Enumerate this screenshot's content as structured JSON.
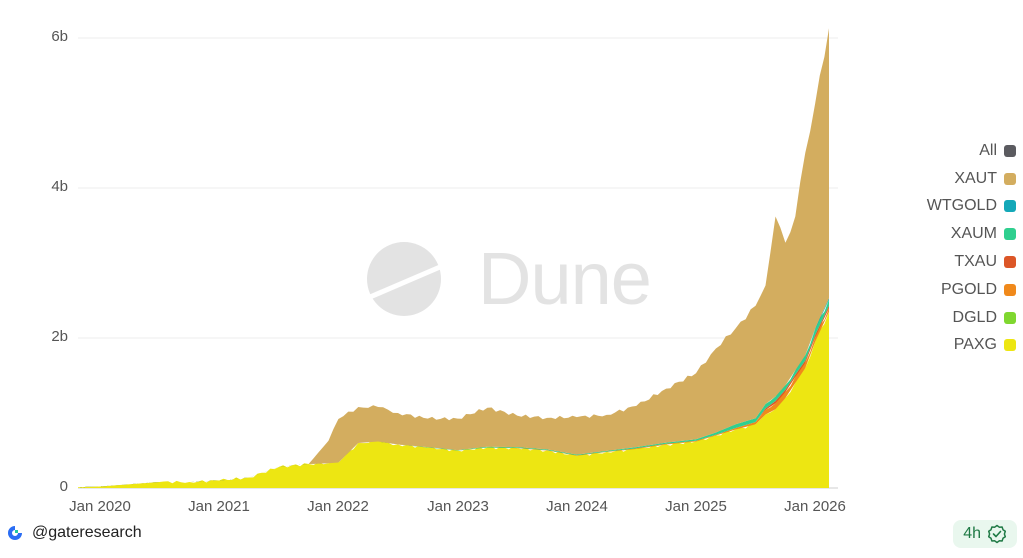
{
  "footer": {
    "handle": "@gateresearch",
    "refresh_badge": "4h"
  },
  "watermark": "Dune",
  "chart_data": {
    "type": "area",
    "stacked": true,
    "title": "",
    "xlabel": "",
    "ylabel": "",
    "ylim": [
      0,
      6000000000
    ],
    "grid": true,
    "legend_position": "right",
    "y_ticks": [
      {
        "label": "0",
        "value": 0
      },
      {
        "label": "2b",
        "value": 2000000000
      },
      {
        "label": "4b",
        "value": 4000000000
      },
      {
        "label": "6b",
        "value": 6000000000
      }
    ],
    "x_ticks": [
      "Jan 2020",
      "Jan 2021",
      "Jan 2022",
      "Jan 2023",
      "Jan 2024",
      "Jan 2025",
      "Jan 2026"
    ],
    "legend": [
      {
        "name": "All",
        "color": "#5b5b60"
      },
      {
        "name": "XAUT",
        "color": "#d3ad5f"
      },
      {
        "name": "WTGOLD",
        "color": "#14a8b8"
      },
      {
        "name": "XAUM",
        "color": "#2fcf8f"
      },
      {
        "name": "TXAU",
        "color": "#dc5627"
      },
      {
        "name": "PGOLD",
        "color": "#f0891b"
      },
      {
        "name": "DGLD",
        "color": "#7fd72f"
      },
      {
        "name": "PAXG",
        "color": "#ede612"
      }
    ],
    "x": [
      "2019-10",
      "2020-01",
      "2020-04",
      "2020-07",
      "2020-10",
      "2021-01",
      "2021-04",
      "2021-07",
      "2021-10",
      "2021-12",
      "2022-01",
      "2022-03",
      "2022-05",
      "2022-07",
      "2022-10",
      "2023-01",
      "2023-04",
      "2023-07",
      "2023-10",
      "2024-01",
      "2024-04",
      "2024-07",
      "2024-10",
      "2025-01",
      "2025-03",
      "2025-05",
      "2025-07",
      "2025-08",
      "2025-09",
      "2025-10",
      "2025-11",
      "2025-12",
      "2026-01",
      "2026-01-15"
    ],
    "series": [
      {
        "name": "PAXG",
        "values": [
          0.01,
          0.02,
          0.05,
          0.08,
          0.08,
          0.1,
          0.14,
          0.28,
          0.32,
          0.33,
          0.34,
          0.6,
          0.62,
          0.58,
          0.54,
          0.5,
          0.54,
          0.53,
          0.5,
          0.43,
          0.48,
          0.52,
          0.58,
          0.62,
          0.7,
          0.78,
          0.85,
          0.98,
          1.05,
          1.2,
          1.4,
          1.6,
          1.95,
          2.35
        ]
      },
      {
        "name": "DGLD",
        "values": [
          0,
          0,
          0,
          0,
          0,
          0,
          0,
          0,
          0,
          0,
          0,
          0,
          0,
          0,
          0,
          0,
          0,
          0,
          0,
          0,
          0,
          0,
          0,
          0,
          0,
          0,
          0,
          0,
          0,
          0,
          0,
          0,
          0,
          0
        ]
      },
      {
        "name": "PGOLD",
        "values": [
          0,
          0,
          0,
          0,
          0,
          0,
          0,
          0,
          0,
          0,
          0,
          0,
          0,
          0,
          0,
          0,
          0,
          0.005,
          0.005,
          0.005,
          0.005,
          0.01,
          0.01,
          0.01,
          0.01,
          0.02,
          0.03,
          0.06,
          0.08,
          0.08,
          0.08,
          0.07,
          0.06,
          0.05
        ]
      },
      {
        "name": "TXAU",
        "values": [
          0,
          0,
          0,
          0,
          0,
          0,
          0,
          0,
          0,
          0,
          0,
          0,
          0,
          0,
          0,
          0,
          0,
          0,
          0,
          0,
          0,
          0,
          0,
          0,
          0,
          0,
          0,
          0.02,
          0.03,
          0.03,
          0.03,
          0.03,
          0.03,
          0.03
        ]
      },
      {
        "name": "XAUM",
        "values": [
          0,
          0,
          0,
          0,
          0,
          0,
          0,
          0,
          0,
          0,
          0,
          0,
          0,
          0,
          0.005,
          0.005,
          0.01,
          0.01,
          0.01,
          0.01,
          0.01,
          0.015,
          0.015,
          0.02,
          0.03,
          0.05,
          0.05,
          0.06,
          0.06,
          0.06,
          0.06,
          0.07,
          0.08,
          0.08
        ]
      },
      {
        "name": "WTGOLD",
        "values": [
          0,
          0,
          0,
          0,
          0,
          0,
          0,
          0,
          0,
          0,
          0,
          0,
          0,
          0,
          0,
          0,
          0,
          0,
          0,
          0,
          0,
          0,
          0,
          0,
          0,
          0,
          0,
          0,
          0,
          0,
          0,
          0,
          0.01,
          0.02
        ]
      },
      {
        "name": "XAUT",
        "values": [
          0,
          0,
          0,
          0,
          0,
          0,
          0,
          0,
          0,
          0.3,
          0.58,
          0.48,
          0.46,
          0.42,
          0.38,
          0.42,
          0.52,
          0.42,
          0.42,
          0.5,
          0.48,
          0.55,
          0.72,
          0.88,
          1.12,
          1.28,
          1.5,
          1.58,
          2.4,
          1.9,
          2.05,
          2.7,
          3.0,
          3.6
        ]
      }
    ],
    "units": "billions USD"
  }
}
